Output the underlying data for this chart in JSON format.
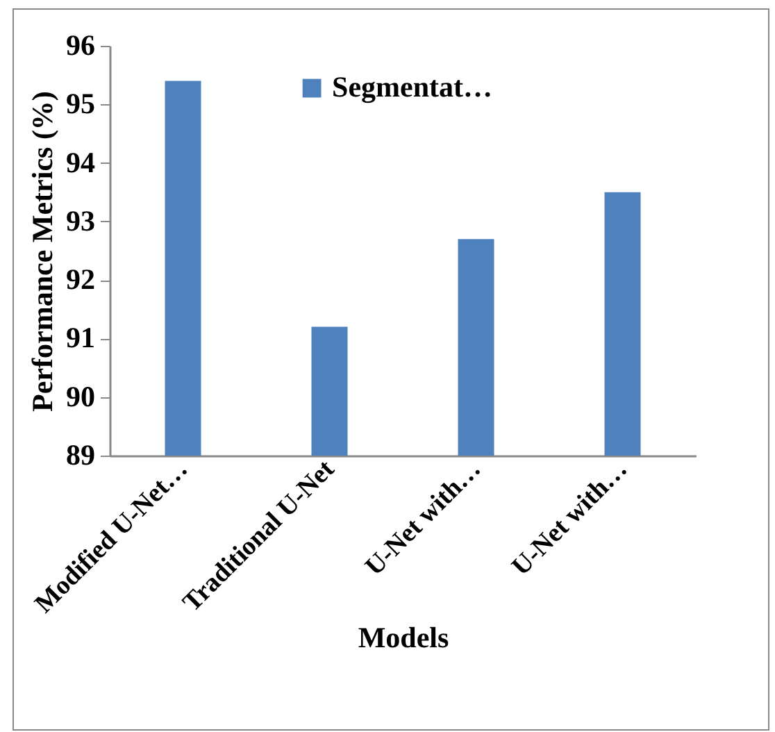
{
  "chart_data": {
    "type": "bar",
    "xlabel": "Models",
    "ylabel": "Performance Metrics (%)",
    "categories": [
      "Modified U-Net…",
      "Traditional U-Net",
      "U-Net with…",
      "U-Net with…"
    ],
    "series": [
      {
        "name": "Segmentat…",
        "color": "#4f81bd",
        "values": [
          95.4,
          91.2,
          92.7,
          93.5
        ]
      }
    ],
    "ylim": [
      89,
      96
    ],
    "yticks": [
      89,
      90,
      91,
      92,
      93,
      94,
      95,
      96
    ],
    "grid": false,
    "legend": "top"
  }
}
